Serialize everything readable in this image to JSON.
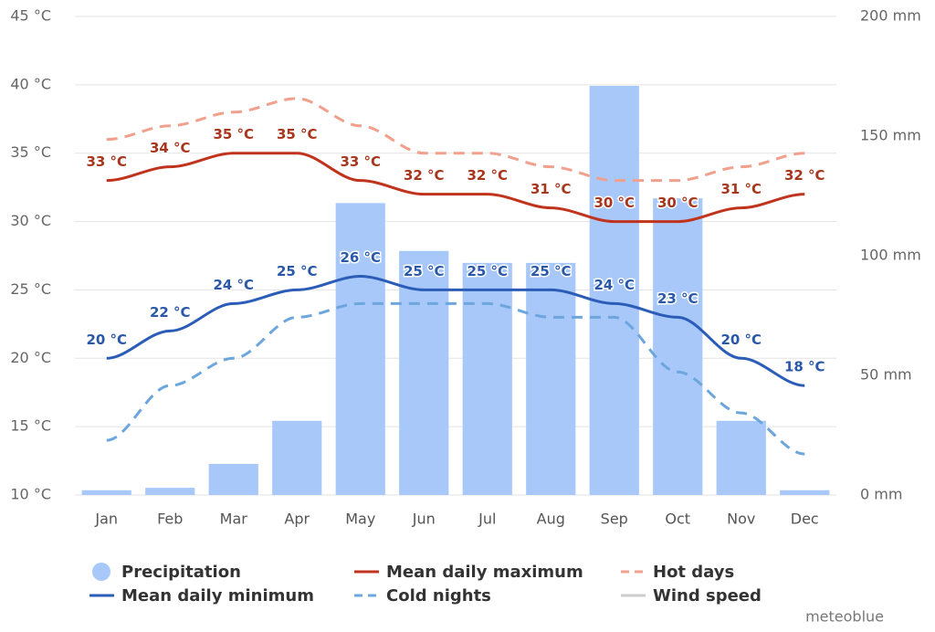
{
  "chart_data": {
    "type": "combo",
    "categories": [
      "Jan",
      "Feb",
      "Mar",
      "Apr",
      "May",
      "Jun",
      "Jul",
      "Aug",
      "Sep",
      "Oct",
      "Nov",
      "Dec"
    ],
    "ylim": [
      10,
      45
    ],
    "yticks": [
      {
        "value": 10,
        "label": "10 °C"
      },
      {
        "value": 15,
        "label": "15 °C"
      },
      {
        "value": 20,
        "label": "20 °C"
      },
      {
        "value": 25,
        "label": "25 °C"
      },
      {
        "value": 30,
        "label": "30 °C"
      },
      {
        "value": 35,
        "label": "35 °C"
      },
      {
        "value": 40,
        "label": "40 °C"
      },
      {
        "value": 45,
        "label": "45 °C"
      }
    ],
    "y2lim": [
      0,
      200
    ],
    "y2ticks": [
      {
        "value": 0,
        "label": "0 mm"
      },
      {
        "value": 50,
        "label": "50 mm"
      },
      {
        "value": 100,
        "label": "100 mm"
      },
      {
        "value": 150,
        "label": "150 mm"
      },
      {
        "value": 200,
        "label": "200 mm"
      }
    ],
    "grid": true,
    "series": [
      {
        "name": "Precipitation",
        "type": "bar",
        "axis": "y2",
        "color": "#a8c8fa",
        "values": [
          2,
          3,
          13,
          31,
          122,
          102,
          97,
          97,
          171,
          124,
          31,
          2
        ]
      },
      {
        "name": "Mean daily maximum",
        "type": "line",
        "color": "#c0341d",
        "label_color": "#a8361c",
        "values": [
          33,
          34,
          35,
          35,
          33,
          32,
          32,
          31,
          30,
          30,
          31,
          32
        ],
        "value_labels": [
          "33 °C",
          "34 °C",
          "35 °C",
          "35 °C",
          "33 °C",
          "32 °C",
          "32 °C",
          "31 °C",
          "30 °C",
          "30 °C",
          "31 °C",
          "32 °C"
        ]
      },
      {
        "name": "Hot days",
        "type": "line",
        "dash": true,
        "color": "#f0a08c",
        "values": [
          36,
          37,
          38,
          39,
          37,
          35,
          35,
          34,
          33,
          33,
          34,
          35
        ]
      },
      {
        "name": "Mean daily minimum",
        "type": "line",
        "color": "#2a5cb8",
        "label_color": "#2a58a8",
        "values": [
          20,
          22,
          24,
          25,
          26,
          25,
          25,
          25,
          24,
          23,
          20,
          18
        ],
        "value_labels": [
          "20 °C",
          "22 °C",
          "24 °C",
          "25 °C",
          "26 °C",
          "25 °C",
          "25 °C",
          "25 °C",
          "24 °C",
          "23 °C",
          "20 °C",
          "18 °C"
        ]
      },
      {
        "name": "Cold nights",
        "type": "line",
        "dash": true,
        "color": "#6ca6dc",
        "values": [
          14,
          18,
          20,
          23,
          24,
          24,
          24,
          23,
          23,
          19,
          16,
          13
        ]
      },
      {
        "name": "Wind speed",
        "type": "line",
        "color": "#cccccc",
        "visible": false
      }
    ],
    "credit": "meteoblue"
  }
}
